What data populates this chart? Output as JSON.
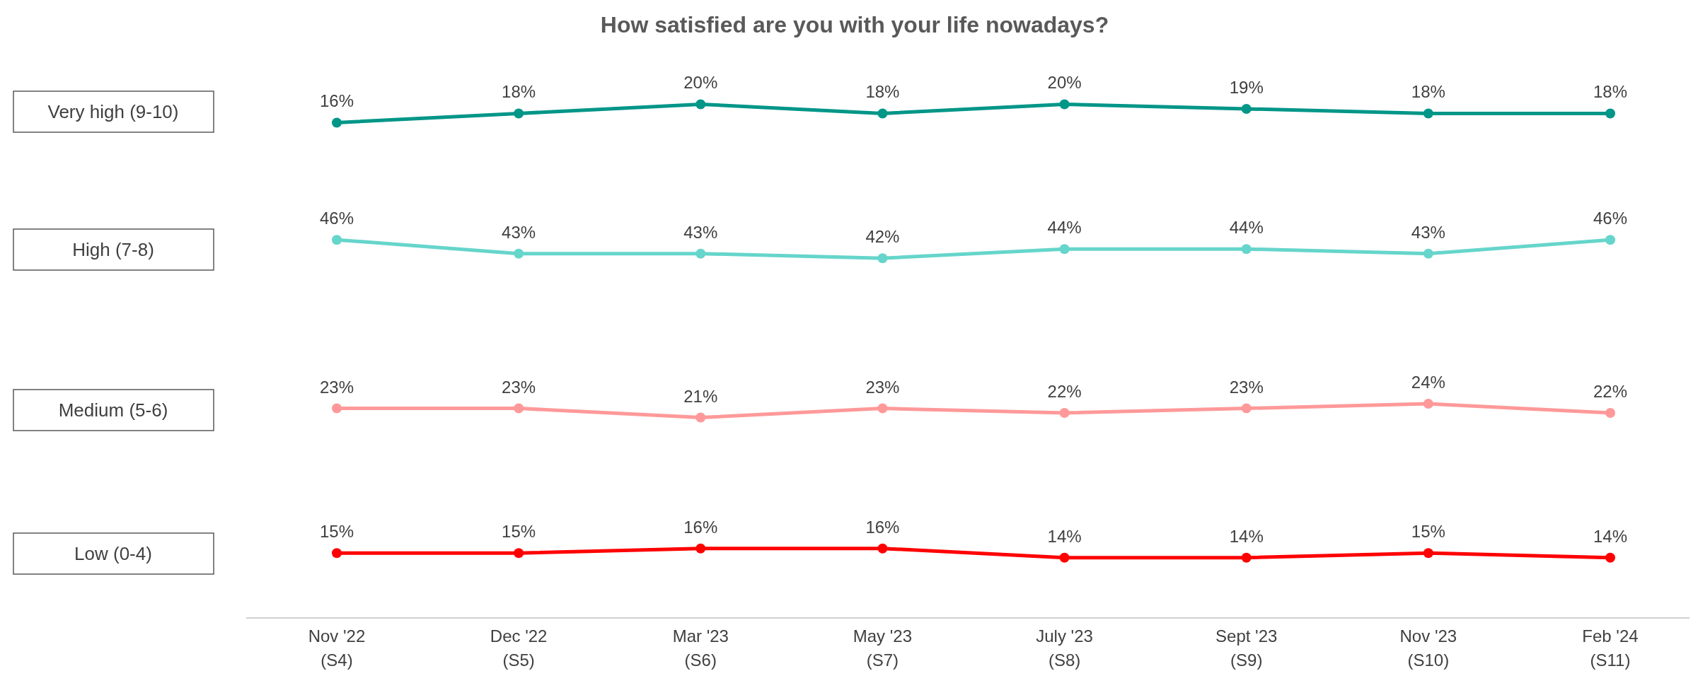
{
  "chart_data": [
    {
      "type": "line",
      "title": "How satisfied are you with your life nowadays?",
      "tick_labels": false,
      "legend": "left",
      "marker": "circle",
      "series": [
        {
          "name": "Very high (9-10)",
          "color": "#009688",
          "values": [
            16,
            18,
            20,
            18,
            20,
            19,
            18,
            18
          ],
          "value_labels": [
            "16%",
            "18%",
            "20%",
            "18%",
            "20%",
            "19%",
            "18%",
            "18%"
          ]
        }
      ]
    },
    {
      "type": "line",
      "tick_labels": false,
      "legend": "left",
      "marker": "circle",
      "series": [
        {
          "name": "High (7-8)",
          "color": "#66d5cb",
          "values": [
            46,
            43,
            43,
            42,
            44,
            44,
            43,
            46
          ],
          "value_labels": [
            "46%",
            "43%",
            "43%",
            "42%",
            "44%",
            "44%",
            "43%",
            "46%"
          ]
        }
      ]
    },
    {
      "type": "line",
      "tick_labels": false,
      "legend": "left",
      "marker": "circle",
      "series": [
        {
          "name": "Medium (5-6)",
          "color": "#ff9999",
          "values": [
            23,
            23,
            21,
            23,
            22,
            23,
            24,
            22
          ],
          "value_labels": [
            "23%",
            "23%",
            "21%",
            "23%",
            "22%",
            "23%",
            "24%",
            "22%"
          ]
        }
      ]
    },
    {
      "type": "line",
      "categories": [
        "Nov '22\n(S4)",
        "Dec '22\n(S5)",
        "Mar '23\n(S6)",
        "May '23\n(S7)",
        "July '23\n(S8)",
        "Sept '23\n(S9)",
        "Nov '23\n(S10)",
        "Feb '24\n(S11)"
      ],
      "tick_labels": "x",
      "legend": "left",
      "marker": "circle",
      "series": [
        {
          "name": "Low (0-4)",
          "color": "#ff0000",
          "values": [
            15,
            15,
            16,
            16,
            14,
            14,
            15,
            14
          ],
          "value_labels": [
            "15%",
            "15%",
            "16%",
            "16%",
            "14%",
            "14%",
            "15%",
            "14%"
          ]
        }
      ]
    }
  ]
}
